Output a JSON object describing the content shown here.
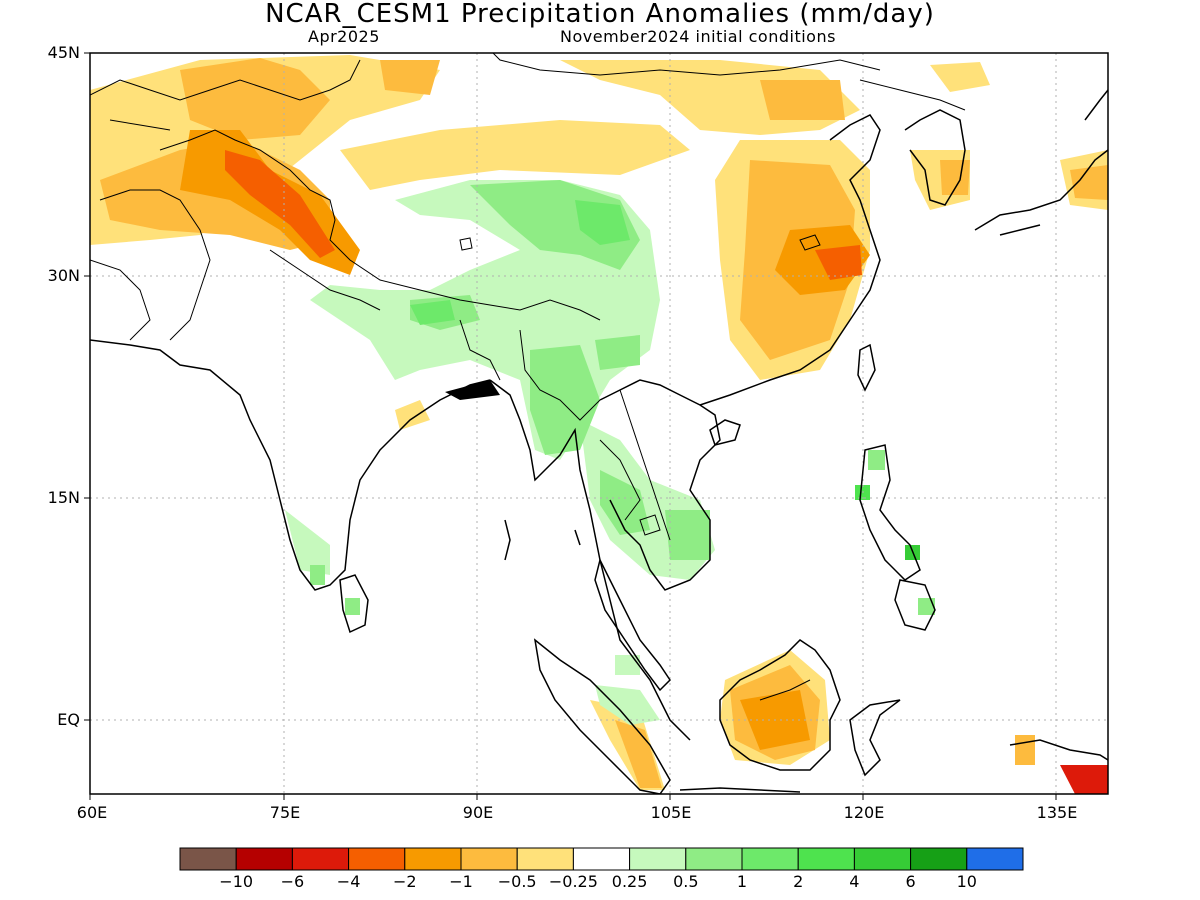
{
  "title": "NCAR_CESM1 Precipitation Anomalies (mm/day)",
  "subtitle_left": "Apr2025",
  "subtitle_right": "November2024 initial conditions",
  "lat_labels": [
    "45N",
    "30N",
    "15N",
    "EQ"
  ],
  "lon_labels": [
    "60E",
    "75E",
    "90E",
    "105E",
    "120E",
    "135E"
  ],
  "colorbar": {
    "colors": [
      "#7a5548",
      "#b50000",
      "#dd1a0a",
      "#f55f00",
      "#f79a00",
      "#fdbb3e",
      "#ffe17a",
      "#ffffff",
      "#c6f9bd",
      "#8fec85",
      "#6de96a",
      "#4ee34e",
      "#36cc36",
      "#16a016",
      "#1f6ee8"
    ],
    "labels": [
      "−10",
      "−6",
      "−4",
      "−2",
      "−1",
      "−0.5",
      "−0.25",
      "0.25",
      "0.5",
      "1",
      "2",
      "4",
      "6",
      "10"
    ]
  },
  "map_features": {
    "graticule": "dotted",
    "coastlines": true,
    "country_borders": true
  }
}
